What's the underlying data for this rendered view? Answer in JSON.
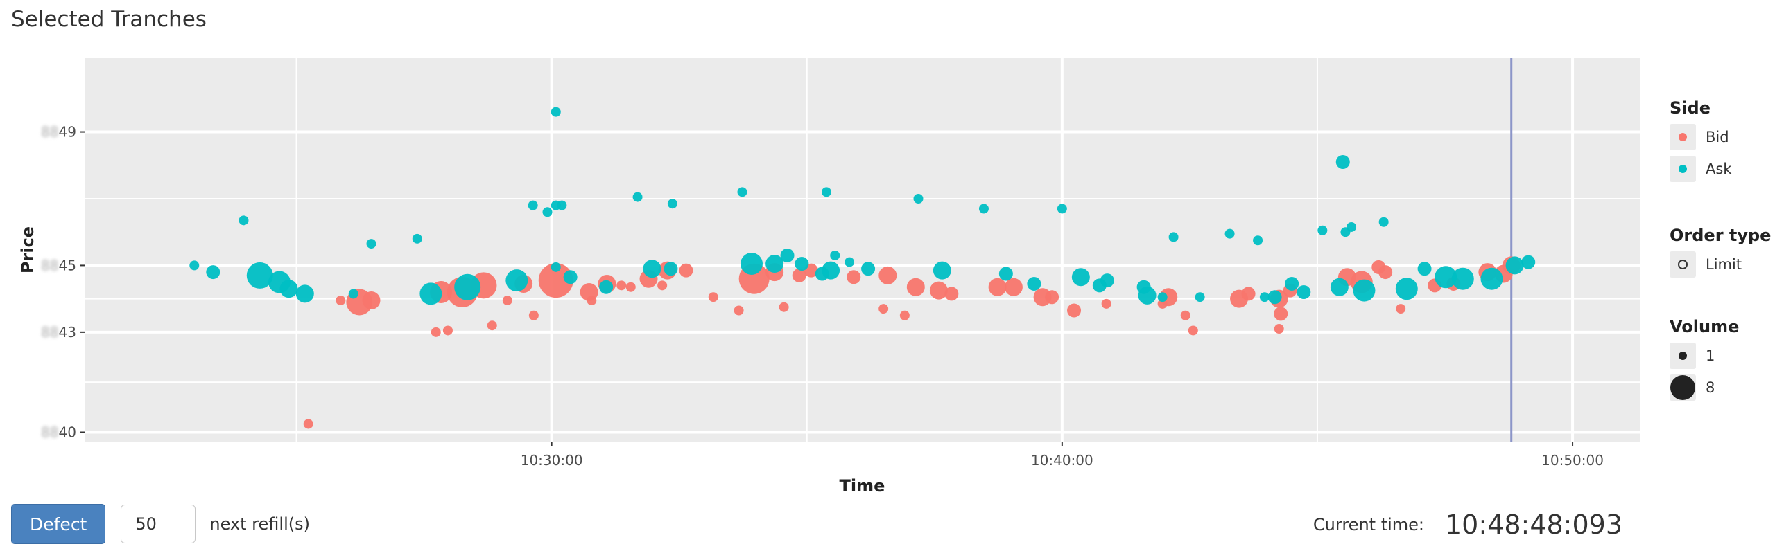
{
  "title": "Selected Tranches",
  "controls": {
    "defect_label": "Defect",
    "refill_value": "50",
    "refill_label": "next refill(s)",
    "current_time_label": "Current time:",
    "current_time_value": "10:48:48:093"
  },
  "colors": {
    "bid": "#F8766D",
    "ask": "#00BFC4",
    "panel": "#EBEBEB",
    "grid": "#FFFFFF",
    "vline": "#8C95C8"
  },
  "chart_data": {
    "type": "scatter",
    "title": "Selected Tranches",
    "xlabel": "Time",
    "ylabel": "Price",
    "x_ticks": [
      "10:30:00",
      "10:40:00",
      "10:50:00"
    ],
    "y_ticks": [
      {
        "value": 40,
        "prefix": "88",
        "suffix": "40"
      },
      {
        "value": 43,
        "prefix": "88",
        "suffix": "43"
      },
      {
        "value": 45,
        "prefix": "88",
        "suffix": "45"
      },
      {
        "value": 49,
        "prefix": "88",
        "suffix": "49"
      }
    ],
    "xlim": [
      "10:20:51",
      "10:51:19"
    ],
    "ylim": [
      39.72,
      51.21
    ],
    "vline": "10:48:48",
    "grid": true,
    "legend_position": "right",
    "legend": {
      "side_title": "Side",
      "side_items": [
        "Bid",
        "Ask"
      ],
      "order_title": "Order type",
      "order_items": [
        "Limit"
      ],
      "volume_title": "Volume",
      "volume_items": [
        1,
        8
      ]
    },
    "series": [
      {
        "name": "Bid",
        "points": [
          [
            "10:25:14",
            40.25,
            1
          ],
          [
            "10:25:52",
            43.95,
            1
          ],
          [
            "10:26:14",
            43.9,
            5
          ],
          [
            "10:26:28",
            43.95,
            3
          ],
          [
            "10:27:44",
            43.0,
            1
          ],
          [
            "10:27:58",
            43.05,
            1
          ],
          [
            "10:27:50",
            44.2,
            4
          ],
          [
            "10:28:15",
            44.2,
            6
          ],
          [
            "10:28:50",
            43.2,
            1
          ],
          [
            "10:29:08",
            43.95,
            1
          ],
          [
            "10:28:40",
            44.4,
            5
          ],
          [
            "10:29:27",
            44.45,
            3
          ],
          [
            "10:29:39",
            43.5,
            1
          ],
          [
            "10:30:05",
            44.55,
            7
          ],
          [
            "10:30:47",
            43.95,
            1
          ],
          [
            "10:30:44",
            44.2,
            3
          ],
          [
            "10:31:05",
            44.45,
            3
          ],
          [
            "10:31:22",
            44.4,
            1
          ],
          [
            "10:31:33",
            44.35,
            1
          ],
          [
            "10:31:54",
            44.6,
            3
          ],
          [
            "10:32:16",
            44.85,
            3
          ],
          [
            "10:32:38",
            44.85,
            2
          ],
          [
            "10:32:10",
            44.4,
            1
          ],
          [
            "10:33:10",
            44.05,
            1
          ],
          [
            "10:33:40",
            43.65,
            1
          ],
          [
            "10:33:58",
            44.6,
            6
          ],
          [
            "10:34:22",
            44.8,
            3
          ],
          [
            "10:34:33",
            43.75,
            1
          ],
          [
            "10:34:51",
            44.7,
            2
          ],
          [
            "10:35:05",
            44.85,
            2
          ],
          [
            "10:35:55",
            44.65,
            2
          ],
          [
            "10:36:30",
            43.7,
            1
          ],
          [
            "10:36:35",
            44.7,
            3
          ],
          [
            "10:36:55",
            43.5,
            1
          ],
          [
            "10:37:08",
            44.35,
            3
          ],
          [
            "10:37:35",
            44.25,
            3
          ],
          [
            "10:37:50",
            44.15,
            2
          ],
          [
            "10:38:44",
            44.35,
            3
          ],
          [
            "10:39:03",
            44.35,
            3
          ],
          [
            "10:39:37",
            44.05,
            3
          ],
          [
            "10:39:48",
            44.05,
            2
          ],
          [
            "10:40:14",
            43.65,
            2
          ],
          [
            "10:40:52",
            43.85,
            1
          ],
          [
            "10:41:58",
            43.85,
            1
          ],
          [
            "10:42:05",
            44.05,
            3
          ],
          [
            "10:42:25",
            43.5,
            1
          ],
          [
            "10:42:34",
            43.05,
            1
          ],
          [
            "10:43:28",
            44.0,
            3
          ],
          [
            "10:43:39",
            44.15,
            2
          ],
          [
            "10:44:15",
            43.1,
            1
          ],
          [
            "10:44:15",
            44.0,
            3
          ],
          [
            "10:44:17",
            43.55,
            2
          ],
          [
            "10:44:28",
            44.25,
            2
          ],
          [
            "10:45:35",
            44.65,
            3
          ],
          [
            "10:45:52",
            44.5,
            4
          ],
          [
            "10:46:12",
            44.95,
            2
          ],
          [
            "10:46:20",
            44.8,
            2
          ],
          [
            "10:46:38",
            43.7,
            1
          ],
          [
            "10:47:18",
            44.4,
            2
          ],
          [
            "10:47:40",
            44.45,
            2
          ],
          [
            "10:48:20",
            44.8,
            3
          ],
          [
            "10:48:39",
            44.75,
            3
          ],
          [
            "10:48:48",
            45.0,
            3
          ]
        ]
      },
      {
        "name": "Ask",
        "points": [
          [
            "10:23:00",
            45.0,
            1
          ],
          [
            "10:23:22",
            44.8,
            2
          ],
          [
            "10:23:58",
            46.35,
            1
          ],
          [
            "10:24:17",
            44.7,
            5
          ],
          [
            "10:24:40",
            44.5,
            4
          ],
          [
            "10:24:51",
            44.3,
            3
          ],
          [
            "10:25:10",
            44.15,
            3
          ],
          [
            "10:26:07",
            44.15,
            1
          ],
          [
            "10:26:28",
            45.65,
            1
          ],
          [
            "10:27:22",
            45.8,
            1
          ],
          [
            "10:27:38",
            44.15,
            4
          ],
          [
            "10:28:21",
            44.35,
            5
          ],
          [
            "10:29:19",
            44.55,
            4
          ],
          [
            "10:29:38",
            46.8,
            1
          ],
          [
            "10:29:55",
            46.6,
            1
          ],
          [
            "10:30:05",
            46.8,
            1
          ],
          [
            "10:30:12",
            46.8,
            1
          ],
          [
            "10:30:05",
            49.6,
            1
          ],
          [
            "10:30:05",
            44.95,
            1
          ],
          [
            "10:30:22",
            44.65,
            2
          ],
          [
            "10:31:04",
            44.35,
            2
          ],
          [
            "10:31:41",
            47.05,
            1
          ],
          [
            "10:31:58",
            44.9,
            3
          ],
          [
            "10:32:22",
            46.85,
            1
          ],
          [
            "10:32:20",
            44.9,
            2
          ],
          [
            "10:33:44",
            47.2,
            1
          ],
          [
            "10:33:55",
            45.05,
            4
          ],
          [
            "10:34:22",
            45.05,
            3
          ],
          [
            "10:34:37",
            45.3,
            2
          ],
          [
            "10:34:54",
            45.05,
            2
          ],
          [
            "10:35:23",
            47.2,
            1
          ],
          [
            "10:35:28",
            44.85,
            3
          ],
          [
            "10:35:33",
            45.3,
            1
          ],
          [
            "10:35:50",
            45.1,
            1
          ],
          [
            "10:35:18",
            44.75,
            2
          ],
          [
            "10:36:12",
            44.9,
            2
          ],
          [
            "10:37:11",
            47.0,
            1
          ],
          [
            "10:37:39",
            44.85,
            3
          ],
          [
            "10:38:28",
            46.7,
            1
          ],
          [
            "10:38:54",
            44.75,
            2
          ],
          [
            "10:39:27",
            44.45,
            2
          ],
          [
            "10:40:00",
            46.7,
            1
          ],
          [
            "10:40:22",
            44.65,
            3
          ],
          [
            "10:40:44",
            44.4,
            2
          ],
          [
            "10:40:53",
            44.55,
            2
          ],
          [
            "10:41:36",
            44.35,
            2
          ],
          [
            "10:41:40",
            44.1,
            3
          ],
          [
            "10:41:58",
            44.05,
            1
          ],
          [
            "10:42:11",
            45.85,
            1
          ],
          [
            "10:42:42",
            44.05,
            1
          ],
          [
            "10:43:17",
            45.95,
            1
          ],
          [
            "10:43:50",
            45.75,
            1
          ],
          [
            "10:43:58",
            44.05,
            1
          ],
          [
            "10:44:10",
            44.05,
            2
          ],
          [
            "10:44:30",
            44.45,
            2
          ],
          [
            "10:44:44",
            44.2,
            2
          ],
          [
            "10:45:06",
            46.05,
            1
          ],
          [
            "10:45:26",
            44.35,
            3
          ],
          [
            "10:45:33",
            46.0,
            1
          ],
          [
            "10:45:40",
            46.15,
            1
          ],
          [
            "10:45:55",
            44.25,
            4
          ],
          [
            "10:46:18",
            46.3,
            1
          ],
          [
            "10:46:45",
            44.3,
            4
          ],
          [
            "10:47:06",
            44.9,
            2
          ],
          [
            "10:47:31",
            44.65,
            4
          ],
          [
            "10:47:51",
            44.6,
            4
          ],
          [
            "10:48:25",
            44.6,
            4
          ],
          [
            "10:48:52",
            45.0,
            3
          ],
          [
            "10:49:08",
            45.1,
            2
          ],
          [
            "10:45:30",
            48.1,
            2
          ]
        ]
      }
    ]
  }
}
